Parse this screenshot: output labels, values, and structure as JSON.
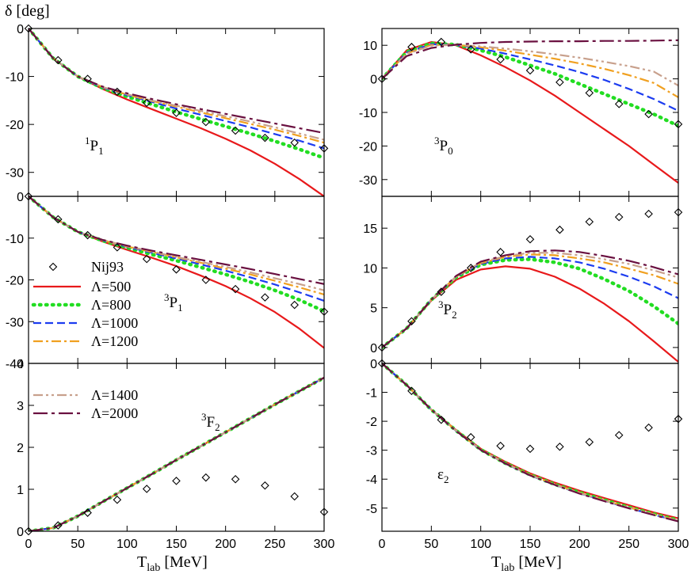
{
  "figure": {
    "ylabel": "δ [deg]",
    "xlabel_main": "T",
    "xlabel_sub": "lab",
    "xlabel_unit": " [MeV]"
  },
  "legend": {
    "nij_label": "Nij93",
    "lam500": "Λ=500",
    "lam800": "Λ=800",
    "lam1000": "Λ=1000",
    "lam1200": "Λ=1200",
    "lam1400": "Λ=1400",
    "lam2000": "Λ=2000"
  },
  "series_styles": [
    {
      "name": "Λ=500",
      "color": "#e8191b",
      "dash": ""
    },
    {
      "name": "Λ=800",
      "color": "#22dd22",
      "dash": "dotted"
    },
    {
      "name": "Λ=1000",
      "color": "#1c3cf0",
      "dash": "dashed"
    },
    {
      "name": "Λ=1200",
      "color": "#f0a020",
      "dash": "dashdot"
    },
    {
      "name": "Λ=1400",
      "color": "#c8a08c",
      "dash": "dashdotdot"
    },
    {
      "name": "Λ=2000",
      "color": "#6a1040",
      "dash": "dashdotlong"
    }
  ],
  "chart_data": [
    {
      "type": "line",
      "id": "1P1",
      "channel_main": "P",
      "channel_pre": "1",
      "channel_sub": "1",
      "x": [
        0,
        25,
        50,
        75,
        100,
        125,
        150,
        175,
        200,
        225,
        250,
        275,
        300
      ],
      "xlim": [
        0,
        300
      ],
      "ylim": [
        -35,
        0
      ],
      "yticks": [
        0,
        -10,
        -20,
        -30
      ],
      "xticks": [
        0,
        50,
        100,
        150,
        200,
        250,
        300
      ],
      "show_xticklabels": false,
      "series": [
        {
          "name": "Λ=500",
          "values": [
            0,
            -6.2,
            -10,
            -12.6,
            -14.8,
            -16.8,
            -18.8,
            -20.8,
            -23,
            -25.4,
            -28.2,
            -31.4,
            -35
          ]
        },
        {
          "name": "Λ=800",
          "values": [
            0,
            -6.2,
            -10,
            -12.4,
            -14.2,
            -15.8,
            -17.4,
            -18.9,
            -20.4,
            -21.9,
            -23.5,
            -25.2,
            -27
          ]
        },
        {
          "name": "Λ=1000",
          "values": [
            0,
            -6.2,
            -10,
            -12.3,
            -13.9,
            -15.3,
            -16.7,
            -18,
            -19.3,
            -20.6,
            -22,
            -23.4,
            -25
          ]
        },
        {
          "name": "Λ=1200",
          "values": [
            0,
            -6.2,
            -10,
            -12.2,
            -13.8,
            -15.1,
            -16.3,
            -17.5,
            -18.7,
            -19.9,
            -21.1,
            -22.4,
            -23.8
          ]
        },
        {
          "name": "Λ=1400",
          "values": [
            0,
            -6.2,
            -10,
            -12.2,
            -13.7,
            -15,
            -16.1,
            -17.2,
            -18.3,
            -19.4,
            -20.6,
            -21.9,
            -23.2
          ]
        },
        {
          "name": "Λ=2000",
          "values": [
            0,
            -6.2,
            -10,
            -12.1,
            -13.5,
            -14.7,
            -15.8,
            -16.8,
            -17.8,
            -18.8,
            -19.8,
            -20.8,
            -21.8
          ]
        }
      ],
      "nij93": {
        "x": [
          0,
          30,
          60,
          90,
          120,
          150,
          180,
          210,
          240,
          270,
          300
        ],
        "y": [
          0,
          -6.6,
          -10.5,
          -13.2,
          -15.5,
          -17.6,
          -19.5,
          -21.3,
          -22.8,
          -23.8,
          -25
        ]
      }
    },
    {
      "type": "line",
      "id": "3P0",
      "channel_main": "P",
      "channel_pre": "3",
      "channel_sub": "0",
      "x": [
        0,
        25,
        50,
        75,
        100,
        125,
        150,
        175,
        200,
        225,
        250,
        275,
        300
      ],
      "xlim": [
        0,
        300
      ],
      "ylim": [
        -35,
        15
      ],
      "yticks": [
        10,
        0,
        -10,
        -20,
        -30
      ],
      "xticks": [
        0,
        50,
        100,
        150,
        200,
        250,
        300
      ],
      "show_xticklabels": false,
      "series": [
        {
          "name": "Λ=500",
          "values": [
            0,
            8.5,
            11,
            10,
            7,
            3.5,
            -0.5,
            -5,
            -10,
            -15,
            -20,
            -25.5,
            -31
          ]
        },
        {
          "name": "Λ=800",
          "values": [
            0,
            8,
            10.6,
            10.2,
            8.5,
            6.5,
            4,
            1.5,
            -1.5,
            -4.5,
            -7.5,
            -10.5,
            -14
          ]
        },
        {
          "name": "Λ=1000",
          "values": [
            0,
            7.8,
            10.3,
            10.1,
            9,
            7.5,
            5.8,
            4,
            2,
            -0.3,
            -3,
            -6,
            -9.5
          ]
        },
        {
          "name": "Λ=1200",
          "values": [
            0,
            7.6,
            10.1,
            10.1,
            9.4,
            8.4,
            7.2,
            6,
            4.6,
            3,
            1.1,
            -1.2,
            -5.5
          ]
        },
        {
          "name": "Λ=1400",
          "values": [
            0,
            7.4,
            9.9,
            10.1,
            9.7,
            9,
            8.2,
            7.3,
            6.3,
            5.1,
            3.8,
            2.2,
            -2
          ]
        },
        {
          "name": "Λ=2000",
          "values": [
            0,
            6.8,
            9.2,
            10.2,
            10.7,
            11,
            11.1,
            11.2,
            11.2,
            11.3,
            11.3,
            11.4,
            11.5
          ]
        }
      ],
      "nij93": {
        "x": [
          0,
          30,
          60,
          90,
          120,
          150,
          180,
          210,
          240,
          270,
          300
        ],
        "y": [
          0,
          9.5,
          11,
          8.8,
          5.8,
          2.5,
          -1,
          -4.2,
          -7.5,
          -10.5,
          -13.5
        ]
      }
    },
    {
      "type": "line",
      "id": "3P1",
      "channel_main": "P",
      "channel_pre": "3",
      "channel_sub": "1",
      "x": [
        0,
        25,
        50,
        75,
        100,
        125,
        150,
        175,
        200,
        225,
        250,
        275,
        300
      ],
      "xlim": [
        0,
        300
      ],
      "ylim": [
        -40,
        0
      ],
      "yticks": [
        0,
        -10,
        -20,
        -30,
        -40
      ],
      "xticks": [
        0,
        50,
        100,
        150,
        200,
        250,
        300
      ],
      "show_xticklabels": false,
      "series": [
        {
          "name": "Λ=500",
          "values": [
            0,
            -5,
            -8.5,
            -10.8,
            -12.8,
            -14.7,
            -16.7,
            -19,
            -21.5,
            -24.4,
            -27.7,
            -31.7,
            -36.3
          ]
        },
        {
          "name": "Λ=800",
          "values": [
            0,
            -5,
            -8.5,
            -10.6,
            -12.3,
            -13.9,
            -15.4,
            -17,
            -18.7,
            -20.5,
            -22.5,
            -24.8,
            -27.5
          ]
        },
        {
          "name": "Λ=1000",
          "values": [
            0,
            -5,
            -8.5,
            -10.5,
            -12.1,
            -13.5,
            -14.9,
            -16.3,
            -17.8,
            -19.4,
            -21.1,
            -23,
            -25
          ]
        },
        {
          "name": "Λ=1200",
          "values": [
            0,
            -5,
            -8.5,
            -10.5,
            -12,
            -13.3,
            -14.6,
            -15.9,
            -17.3,
            -18.7,
            -20.2,
            -21.8,
            -23.5
          ]
        },
        {
          "name": "Λ=1400",
          "values": [
            0,
            -5,
            -8.5,
            -10.4,
            -11.9,
            -13.2,
            -14.5,
            -15.7,
            -16.9,
            -18.2,
            -19.6,
            -21,
            -22.5
          ]
        },
        {
          "name": "Λ=2000",
          "values": [
            0,
            -5,
            -8.5,
            -10.4,
            -11.8,
            -13,
            -14.1,
            -15.2,
            -16.3,
            -17.4,
            -18.6,
            -19.8,
            -21
          ]
        }
      ],
      "nij93": {
        "x": [
          0,
          30,
          60,
          90,
          120,
          150,
          180,
          210,
          240,
          270,
          300
        ],
        "y": [
          0,
          -5.5,
          -9.3,
          -12.2,
          -15,
          -17.5,
          -20,
          -22.2,
          -24.2,
          -26,
          -27.6
        ]
      }
    },
    {
      "type": "line",
      "id": "3P2",
      "channel_main": "P",
      "channel_pre": "3",
      "channel_sub": "2",
      "x": [
        0,
        25,
        50,
        75,
        100,
        125,
        150,
        175,
        200,
        225,
        250,
        275,
        300
      ],
      "xlim": [
        0,
        300
      ],
      "ylim": [
        -2,
        19
      ],
      "yticks": [
        0,
        5,
        10,
        15
      ],
      "xticks": [
        0,
        50,
        100,
        150,
        200,
        250,
        300
      ],
      "show_xticklabels": false,
      "series": [
        {
          "name": "Λ=500",
          "values": [
            0,
            2.4,
            5.9,
            8.5,
            9.8,
            10.2,
            9.9,
            8.9,
            7.4,
            5.5,
            3.3,
            0.8,
            -1.8
          ]
        },
        {
          "name": "Λ=800",
          "values": [
            0,
            2.4,
            6,
            8.8,
            10.4,
            11,
            11.1,
            10.7,
            9.9,
            8.6,
            7.1,
            5.2,
            3
          ]
        },
        {
          "name": "Λ=1000",
          "values": [
            0,
            2.4,
            6,
            8.9,
            10.5,
            11.2,
            11.4,
            11.2,
            10.7,
            9.9,
            8.9,
            7.7,
            6.2
          ]
        },
        {
          "name": "Λ=1200",
          "values": [
            0,
            2.4,
            6,
            8.9,
            10.6,
            11.4,
            11.7,
            11.6,
            11.2,
            10.7,
            9.9,
            9.1,
            8
          ]
        },
        {
          "name": "Λ=1400",
          "values": [
            0,
            2.4,
            6,
            8.9,
            10.7,
            11.5,
            11.9,
            11.9,
            11.6,
            11.1,
            10.5,
            9.7,
            8.8
          ]
        },
        {
          "name": "Λ=2000",
          "values": [
            0,
            2.4,
            6,
            9,
            10.8,
            11.6,
            12.1,
            12.2,
            12,
            11.5,
            10.9,
            10.1,
            9.2
          ]
        }
      ],
      "nij93": {
        "x": [
          0,
          30,
          60,
          90,
          120,
          150,
          180,
          210,
          240,
          270,
          300
        ],
        "y": [
          0,
          3.3,
          7,
          10,
          12,
          13.6,
          14.8,
          15.8,
          16.4,
          16.8,
          17
        ]
      }
    },
    {
      "type": "line",
      "id": "3F2",
      "channel_main": "F",
      "channel_pre": "3",
      "channel_sub": "2",
      "x": [
        0,
        25,
        50,
        75,
        100,
        125,
        150,
        175,
        200,
        225,
        250,
        275,
        300
      ],
      "xlim": [
        0,
        300
      ],
      "ylim": [
        0,
        4
      ],
      "yticks": [
        0,
        1,
        2,
        3,
        4
      ],
      "xticks": [
        0,
        50,
        100,
        150,
        200,
        250,
        300
      ],
      "show_xticklabels": true,
      "series": [
        {
          "name": "Λ=500",
          "values": [
            0,
            0.08,
            0.36,
            0.7,
            1.03,
            1.36,
            1.7,
            2.03,
            2.36,
            2.69,
            3.02,
            3.34,
            3.66
          ]
        },
        {
          "name": "Λ=800",
          "values": [
            0,
            0.08,
            0.36,
            0.7,
            1.03,
            1.36,
            1.7,
            2.03,
            2.36,
            2.69,
            3.02,
            3.34,
            3.66
          ]
        },
        {
          "name": "Λ=1000",
          "values": [
            0,
            0.08,
            0.36,
            0.7,
            1.03,
            1.36,
            1.7,
            2.03,
            2.36,
            2.69,
            3.02,
            3.34,
            3.66
          ]
        },
        {
          "name": "Λ=1200",
          "values": [
            0,
            0.08,
            0.36,
            0.7,
            1.03,
            1.36,
            1.7,
            2.03,
            2.36,
            2.69,
            3.02,
            3.34,
            3.66
          ]
        },
        {
          "name": "Λ=1400",
          "values": [
            0,
            0.08,
            0.36,
            0.7,
            1.03,
            1.36,
            1.7,
            2.03,
            2.36,
            2.69,
            3.02,
            3.34,
            3.66
          ]
        },
        {
          "name": "Λ=2000",
          "values": [
            0,
            0.08,
            0.36,
            0.7,
            1.03,
            1.36,
            1.7,
            2.03,
            2.36,
            2.69,
            3.02,
            3.34,
            3.66
          ]
        }
      ],
      "nij93": {
        "x": [
          0,
          30,
          60,
          90,
          120,
          150,
          180,
          210,
          240,
          270,
          300
        ],
        "y": [
          0,
          0.14,
          0.44,
          0.75,
          1.01,
          1.2,
          1.28,
          1.24,
          1.09,
          0.83,
          0.46
        ]
      }
    },
    {
      "type": "line",
      "id": "eps2",
      "channel_main": "ε",
      "channel_pre": "",
      "channel_sub": "2",
      "x": [
        0,
        25,
        50,
        75,
        100,
        125,
        150,
        175,
        200,
        225,
        250,
        275,
        300
      ],
      "xlim": [
        0,
        300
      ],
      "ylim": [
        -5.8,
        0
      ],
      "yticks": [
        0,
        -1,
        -2,
        -3,
        -4,
        -5
      ],
      "xticks": [
        0,
        50,
        100,
        150,
        200,
        250,
        300
      ],
      "show_xticklabels": true,
      "series": [
        {
          "name": "Λ=500",
          "values": [
            0,
            -0.75,
            -1.6,
            -2.3,
            -2.95,
            -3.4,
            -3.8,
            -4.12,
            -4.4,
            -4.65,
            -4.9,
            -5.15,
            -5.35
          ]
        },
        {
          "name": "Λ=800",
          "values": [
            0,
            -0.75,
            -1.6,
            -2.32,
            -2.98,
            -3.45,
            -3.85,
            -4.18,
            -4.46,
            -4.72,
            -4.97,
            -5.2,
            -5.42
          ]
        },
        {
          "name": "Λ=1000",
          "values": [
            0,
            -0.75,
            -1.6,
            -2.33,
            -2.99,
            -3.46,
            -3.87,
            -4.2,
            -4.49,
            -4.75,
            -5,
            -5.23,
            -5.45
          ]
        },
        {
          "name": "Λ=1200",
          "values": [
            0,
            -0.75,
            -1.6,
            -2.32,
            -2.98,
            -3.45,
            -3.85,
            -4.18,
            -4.47,
            -4.73,
            -4.98,
            -5.21,
            -5.43
          ]
        },
        {
          "name": "Λ=1400",
          "values": [
            0,
            -0.75,
            -1.6,
            -2.32,
            -2.98,
            -3.45,
            -3.86,
            -4.19,
            -4.48,
            -4.74,
            -4.99,
            -5.22,
            -5.44
          ]
        },
        {
          "name": "Λ=2000",
          "values": [
            0,
            -0.75,
            -1.6,
            -2.33,
            -2.99,
            -3.46,
            -3.87,
            -4.2,
            -4.5,
            -4.76,
            -5.01,
            -5.24,
            -5.46
          ]
        }
      ],
      "nij93": {
        "x": [
          0,
          30,
          60,
          90,
          120,
          150,
          180,
          210,
          240,
          270,
          300
        ],
        "y": [
          0,
          -0.95,
          -1.95,
          -2.55,
          -2.85,
          -2.95,
          -2.88,
          -2.72,
          -2.48,
          -2.22,
          -1.92
        ]
      }
    }
  ]
}
